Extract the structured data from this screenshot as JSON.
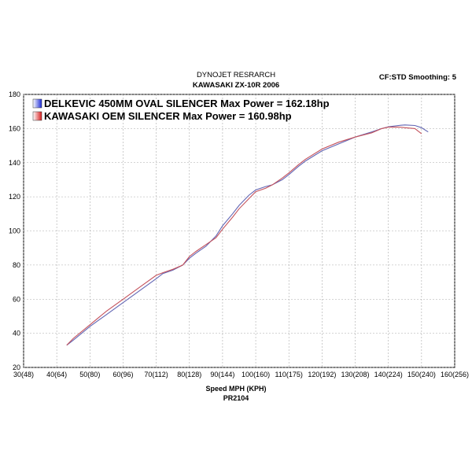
{
  "chart_data": {
    "type": "line",
    "title": "DYNOJET RESRARCH",
    "subtitle": "KAWASAKI ZX-10R 2006",
    "annotation": "CF:STD Smoothing: 5",
    "x_label": "Speed MPH (KPH)",
    "footer": "PR2104",
    "x": [
      43,
      45,
      50,
      55,
      60,
      65,
      70,
      72,
      75,
      78,
      80,
      82,
      85,
      88,
      90,
      93,
      95,
      98,
      100,
      103,
      105,
      108,
      110,
      113,
      115,
      120,
      125,
      130,
      135,
      138,
      140,
      143,
      145,
      148,
      150,
      152
    ],
    "series": [
      {
        "name": "DELKEVIC 450MM OVAL SILENCER Max Power  = 162.18hp",
        "color": "#6266b4",
        "values": [
          33,
          36,
          44,
          51,
          58,
          65,
          72,
          75,
          77,
          80,
          84,
          87,
          91,
          97,
          103,
          110,
          115,
          121,
          124,
          126,
          127,
          130,
          133,
          138,
          141,
          147,
          151,
          155,
          158,
          160,
          161,
          161.8,
          162.1,
          161.8,
          160.5,
          158
        ]
      },
      {
        "name": "KAWASAKI OEM SILENCER Max Power = 160.98hp",
        "color": "#c4525c",
        "values": [
          33,
          37,
          45,
          53,
          60,
          67,
          74,
          75.5,
          77.5,
          80,
          85,
          88,
          92,
          96,
          101,
          108,
          113,
          119,
          123,
          125,
          127,
          131,
          134,
          139,
          142,
          148,
          152,
          155,
          157.5,
          160,
          160.8,
          160.9,
          160.5,
          160,
          157,
          null
        ]
      }
    ],
    "xlim": [
      30,
      160
    ],
    "ylim": [
      20,
      180
    ],
    "xticks": [
      {
        "value": 30,
        "label": "30(48)"
      },
      {
        "value": 40,
        "label": "40(64)"
      },
      {
        "value": 50,
        "label": "50(80)"
      },
      {
        "value": 60,
        "label": "60(96)"
      },
      {
        "value": 70,
        "label": "70(112)"
      },
      {
        "value": 80,
        "label": "80(128)"
      },
      {
        "value": 90,
        "label": "90(144)"
      },
      {
        "value": 100,
        "label": "100(160)"
      },
      {
        "value": 110,
        "label": "110(175)"
      },
      {
        "value": 120,
        "label": "120(192)"
      },
      {
        "value": 130,
        "label": "130(208)"
      },
      {
        "value": 140,
        "label": "140(224)"
      },
      {
        "value": 150,
        "label": "150(240)"
      },
      {
        "value": 160,
        "label": "160(256)"
      }
    ],
    "yticks": [
      20,
      40,
      60,
      80,
      100,
      120,
      140,
      160,
      180
    ],
    "grid": true
  }
}
